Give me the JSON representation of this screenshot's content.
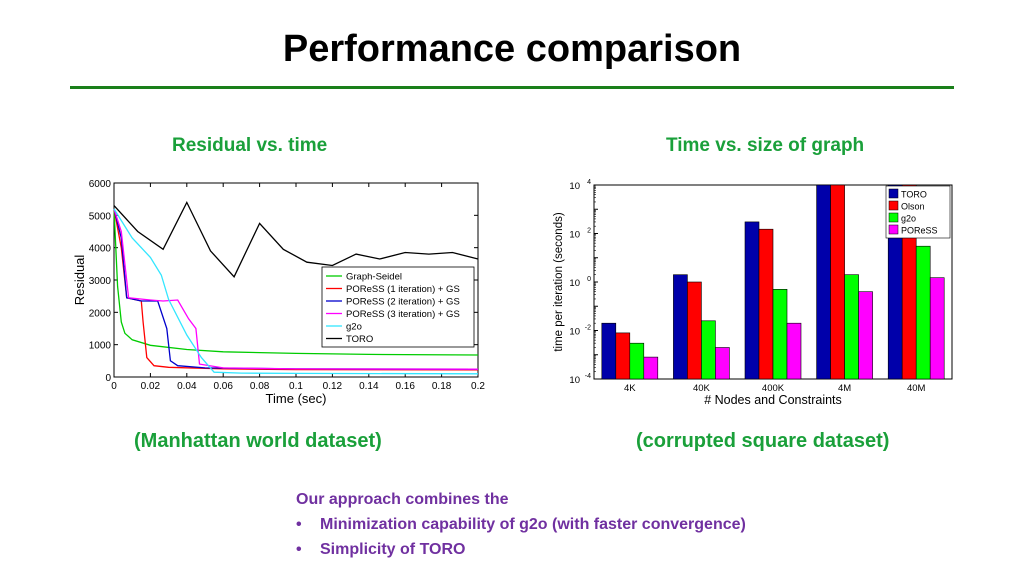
{
  "slide": {
    "title": "Performance comparison",
    "left_heading": "Residual vs. time",
    "right_heading": "Time vs. size of graph",
    "left_caption": "(Manhattan world dataset)",
    "right_caption": "(corrupted square dataset)",
    "note_intro": "Our approach combines the",
    "bullets": [
      "Minimization capability of g2o (with faster convergence)",
      "Simplicity of TORO"
    ],
    "accent_color": "#1aa03a",
    "note_color": "#7030a0"
  },
  "chart_data": [
    {
      "type": "line",
      "xlabel": "Time (sec)",
      "ylabel": "Residual",
      "xlim": [
        0,
        0.2
      ],
      "ylim": [
        0,
        6000
      ],
      "xticks": [
        "0",
        "0.02",
        "0.04",
        "0.06",
        "0.08",
        "0.1",
        "0.12",
        "0.14",
        "0.16",
        "0.18",
        "0.2"
      ],
      "yticks": [
        "0",
        "1000",
        "2000",
        "3000",
        "4000",
        "5000",
        "6000"
      ],
      "legend_position": "lower-right",
      "series": [
        {
          "name": "Graph-Seidel",
          "color": "#00cc00",
          "points": [
            [
              0,
              5200
            ],
            [
              0.002,
              2800
            ],
            [
              0.004,
              1700
            ],
            [
              0.006,
              1350
            ],
            [
              0.01,
              1150
            ],
            [
              0.02,
              980
            ],
            [
              0.04,
              850
            ],
            [
              0.06,
              780
            ],
            [
              0.1,
              730
            ],
            [
              0.14,
              700
            ],
            [
              0.2,
              680
            ]
          ]
        },
        {
          "name": "POReSS (1 iteration) + GS",
          "color": "#ff0000",
          "points": [
            [
              0,
              5200
            ],
            [
              0.004,
              4000
            ],
            [
              0.007,
              2450
            ],
            [
              0.015,
              2350
            ],
            [
              0.016,
              1700
            ],
            [
              0.018,
              600
            ],
            [
              0.022,
              350
            ],
            [
              0.03,
              300
            ],
            [
              0.06,
              250
            ],
            [
              0.1,
              230
            ],
            [
              0.2,
              220
            ]
          ]
        },
        {
          "name": "POReSS (2 iteration) + GS",
          "color": "#0000cc",
          "points": [
            [
              0,
              5200
            ],
            [
              0.004,
              4300
            ],
            [
              0.007,
              2450
            ],
            [
              0.015,
              2350
            ],
            [
              0.024,
              2350
            ],
            [
              0.029,
              1500
            ],
            [
              0.031,
              500
            ],
            [
              0.035,
              350
            ],
            [
              0.05,
              280
            ],
            [
              0.1,
              250
            ],
            [
              0.2,
              240
            ]
          ]
        },
        {
          "name": "POReSS (3 iteration) + GS",
          "color": "#ff00ff",
          "points": [
            [
              0,
              5200
            ],
            [
              0.004,
              4500
            ],
            [
              0.008,
              2450
            ],
            [
              0.02,
              2380
            ],
            [
              0.027,
              2350
            ],
            [
              0.035,
              2380
            ],
            [
              0.041,
              1800
            ],
            [
              0.045,
              1500
            ],
            [
              0.047,
              400
            ],
            [
              0.06,
              280
            ],
            [
              0.1,
              250
            ],
            [
              0.2,
              240
            ]
          ]
        },
        {
          "name": "g2o",
          "color": "#33e6ff",
          "points": [
            [
              0,
              5200
            ],
            [
              0.01,
              4300
            ],
            [
              0.02,
              3700
            ],
            [
              0.026,
              3150
            ],
            [
              0.03,
              2400
            ],
            [
              0.04,
              1300
            ],
            [
              0.048,
              600
            ],
            [
              0.055,
              150
            ],
            [
              0.07,
              120
            ],
            [
              0.1,
              110
            ],
            [
              0.2,
              100
            ]
          ]
        },
        {
          "name": "TORO",
          "color": "#000000",
          "points": [
            [
              0,
              5300
            ],
            [
              0.013,
              4500
            ],
            [
              0.027,
              3950
            ],
            [
              0.04,
              5400
            ],
            [
              0.053,
              3900
            ],
            [
              0.066,
              3100
            ],
            [
              0.08,
              4750
            ],
            [
              0.093,
              3950
            ],
            [
              0.106,
              3550
            ],
            [
              0.12,
              3450
            ],
            [
              0.133,
              3800
            ],
            [
              0.146,
              3650
            ],
            [
              0.16,
              3850
            ],
            [
              0.173,
              3800
            ],
            [
              0.186,
              3850
            ],
            [
              0.2,
              3650
            ]
          ]
        }
      ]
    },
    {
      "type": "bar",
      "xlabel": "# Nodes and Constraints",
      "ylabel": "time per iteration (seconds)",
      "yscale": "log",
      "ylim": [
        0.0001,
        10000
      ],
      "yticks": [
        "10-4",
        "10-2",
        "100",
        "102",
        "104"
      ],
      "legend_position": "top-right",
      "categories": [
        "4K",
        "40K",
        "400K",
        "4M",
        "40M"
      ],
      "series": [
        {
          "name": "TORO",
          "color": "#0000aa",
          "values": [
            0.02,
            2,
            300,
            10000,
            10000
          ]
        },
        {
          "name": "Olson",
          "color": "#ff0000",
          "values": [
            0.008,
            1,
            150,
            10000,
            10000
          ]
        },
        {
          "name": "g2o",
          "color": "#00ff00",
          "values": [
            0.003,
            0.025,
            0.5,
            2,
            30
          ]
        },
        {
          "name": "POReSS",
          "color": "#ff00ff",
          "values": [
            0.0008,
            0.002,
            0.02,
            0.4,
            1.5
          ]
        }
      ]
    }
  ]
}
